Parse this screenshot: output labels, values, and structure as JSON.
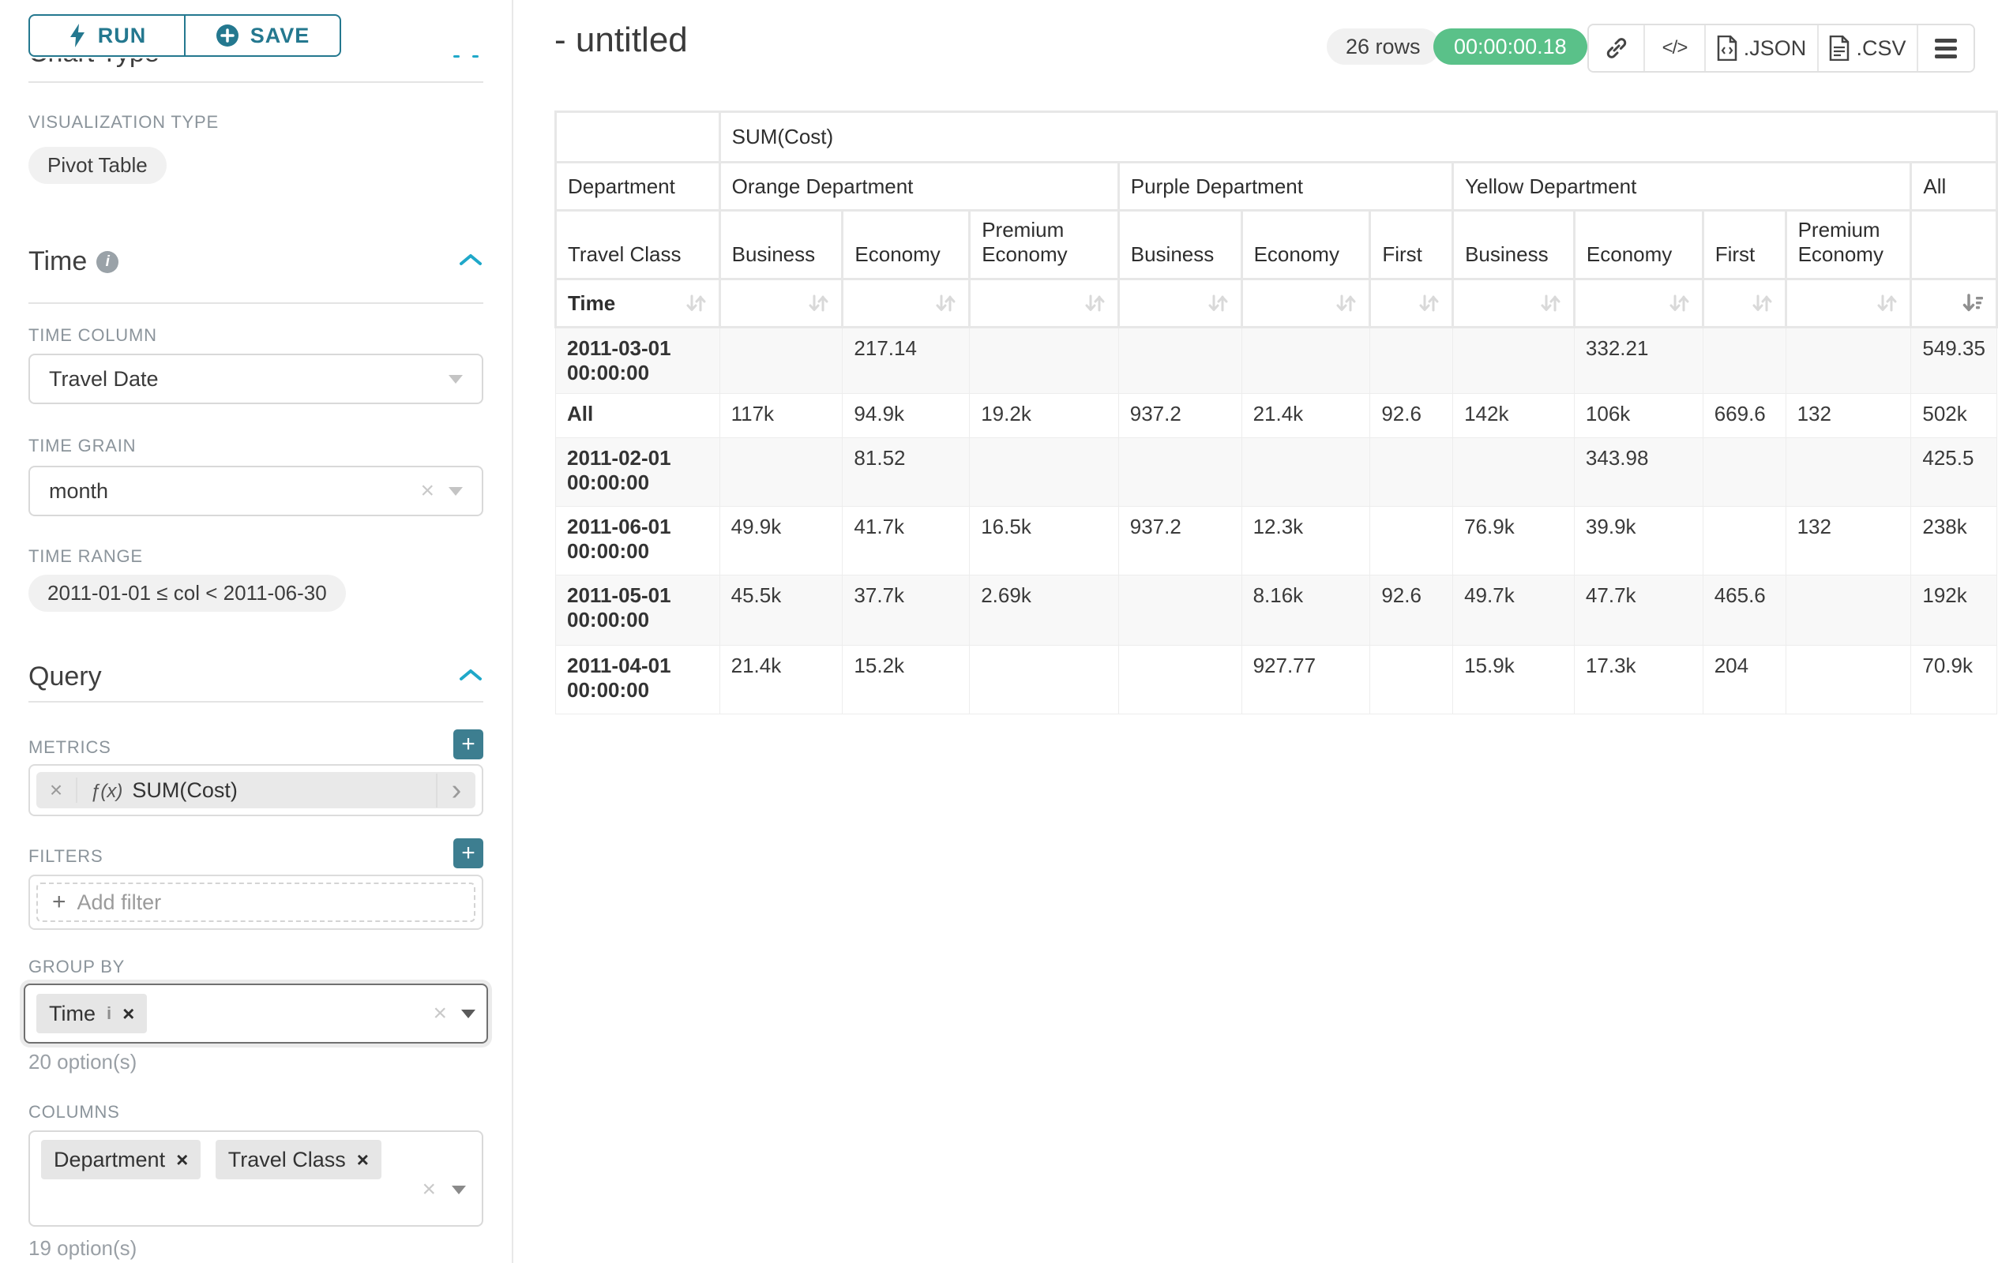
{
  "colors": {
    "primary_teal": "#24788f",
    "accent_blue": "#1fa8c9",
    "add_button_teal": "#3d7e90",
    "timer_green": "#5ac189",
    "label_gray": "#8b949b"
  },
  "panel": {
    "run_label": "RUN",
    "save_label": "SAVE",
    "hidden_section_title": "Chart Type",
    "viz_type_label": "VISUALIZATION TYPE",
    "viz_type_value": "Pivot Table",
    "time_section": {
      "title": "Time",
      "time_column_label": "TIME COLUMN",
      "time_column_value": "Travel Date",
      "time_grain_label": "TIME GRAIN",
      "time_grain_value": "month",
      "time_range_label": "TIME RANGE",
      "time_range_value": "2011-01-01 ≤ col < 2011-06-30"
    },
    "query_section": {
      "title": "Query",
      "metrics_label": "METRICS",
      "metric_fx": "ƒ(x)",
      "metric_value": "SUM(Cost)",
      "filters_label": "FILTERS",
      "add_filter_label": "Add filter",
      "group_by_label": "GROUP BY",
      "group_by_chip": "Time",
      "group_by_options": "20 option(s)",
      "columns_label": "COLUMNS",
      "columns_chips": [
        "Department",
        "Travel Class"
      ],
      "columns_options": "19 option(s)"
    }
  },
  "header": {
    "title": "- untitled",
    "rows_badge": "26 rows",
    "timer": "00:00:00.18",
    "json_label": ".JSON",
    "csv_label": ".CSV"
  },
  "chart_data": {
    "type": "table",
    "title": "SUM(Cost)",
    "corner": {
      "department": "Department",
      "travel_class": "Travel Class",
      "time": "Time"
    },
    "column_groups": [
      {
        "label": "Orange Department",
        "columns": [
          "Business",
          "Economy",
          "Premium Economy"
        ]
      },
      {
        "label": "Purple Department",
        "columns": [
          "Business",
          "Economy",
          "First"
        ]
      },
      {
        "label": "Yellow Department",
        "columns": [
          "Business",
          "Economy",
          "First",
          "Premium Economy"
        ]
      },
      {
        "label": "All",
        "columns": [
          ""
        ]
      }
    ],
    "rows": [
      {
        "label": "2011-03-01 00:00:00",
        "values": [
          "",
          "217.14",
          "",
          "",
          "",
          "",
          "",
          "332.21",
          "",
          "",
          "549.35"
        ]
      },
      {
        "label": "All",
        "values": [
          "117k",
          "94.9k",
          "19.2k",
          "937.2",
          "21.4k",
          "92.6",
          "142k",
          "106k",
          "669.6",
          "132",
          "502k"
        ]
      },
      {
        "label": "2011-02-01 00:00:00",
        "values": [
          "",
          "81.52",
          "",
          "",
          "",
          "",
          "",
          "343.98",
          "",
          "",
          "425.5"
        ]
      },
      {
        "label": "2011-06-01 00:00:00",
        "values": [
          "49.9k",
          "41.7k",
          "16.5k",
          "937.2",
          "12.3k",
          "",
          "76.9k",
          "39.9k",
          "",
          "132",
          "238k"
        ]
      },
      {
        "label": "2011-05-01 00:00:00",
        "values": [
          "45.5k",
          "37.7k",
          "2.69k",
          "",
          "8.16k",
          "92.6",
          "49.7k",
          "47.7k",
          "465.6",
          "",
          "192k"
        ]
      },
      {
        "label": "2011-04-01 00:00:00",
        "values": [
          "21.4k",
          "15.2k",
          "",
          "",
          "927.77",
          "",
          "15.9k",
          "17.3k",
          "204",
          "",
          "70.9k"
        ]
      }
    ],
    "sorted_column": "All",
    "sort_direction": "desc"
  }
}
